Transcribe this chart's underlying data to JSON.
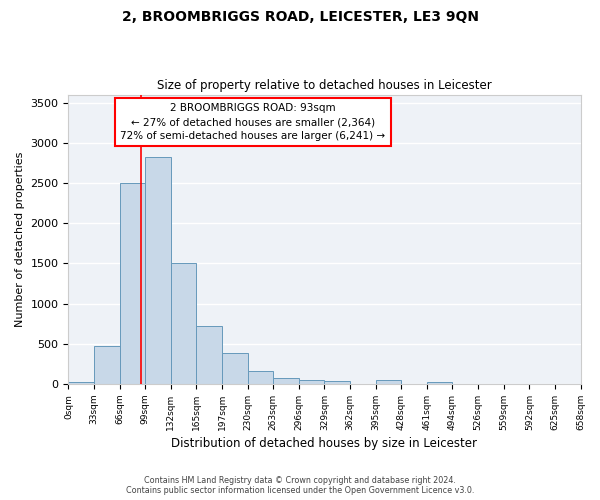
{
  "title": "2, BROOMBRIGGS ROAD, LEICESTER, LE3 9QN",
  "subtitle": "Size of property relative to detached houses in Leicester",
  "xlabel": "Distribution of detached houses by size in Leicester",
  "ylabel": "Number of detached properties",
  "bar_color": "#c8d8e8",
  "bar_edge_color": "#6699bb",
  "background_color": "#eef2f7",
  "grid_color": "#ffffff",
  "bin_labels": [
    "0sqm",
    "33sqm",
    "66sqm",
    "99sqm",
    "132sqm",
    "165sqm",
    "197sqm",
    "230sqm",
    "263sqm",
    "296sqm",
    "329sqm",
    "362sqm",
    "395sqm",
    "428sqm",
    "461sqm",
    "494sqm",
    "526sqm",
    "559sqm",
    "592sqm",
    "625sqm",
    "658sqm"
  ],
  "bar_values": [
    20,
    470,
    2500,
    2820,
    1510,
    720,
    380,
    155,
    70,
    50,
    40,
    0,
    55,
    0,
    30,
    0,
    0,
    0,
    0,
    0
  ],
  "ylim": [
    0,
    3600
  ],
  "yticks": [
    0,
    500,
    1000,
    1500,
    2000,
    2500,
    3000,
    3500
  ],
  "property_sqm": 93,
  "annotation_title": "2 BROOMBRIGGS ROAD: 93sqm",
  "annotation_line1": "← 27% of detached houses are smaller (2,364)",
  "annotation_line2": "72% of semi-detached houses are larger (6,241) →",
  "footer_line1": "Contains HM Land Registry data © Crown copyright and database right 2024.",
  "footer_line2": "Contains public sector information licensed under the Open Government Licence v3.0."
}
